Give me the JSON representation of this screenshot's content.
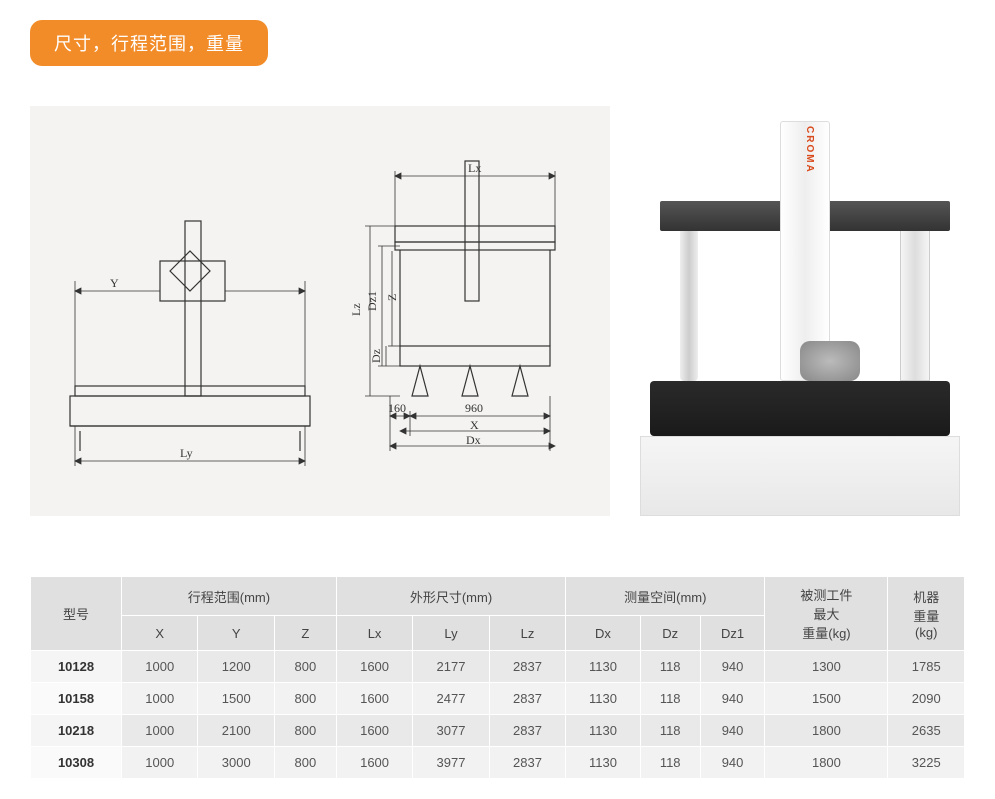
{
  "header": {
    "title": "尺寸，行程范围，重量"
  },
  "diagram": {
    "front_dim_y": "Y",
    "front_dim_ly": "Ly",
    "side_dim_lx": "Lx",
    "side_dim_lz": "Lz",
    "side_dim_z": "Z",
    "side_dim_dz": "Dz",
    "side_dim_dz1": "Dz1",
    "side_dim_x": "X",
    "side_dim_dx": "Dx",
    "side_num_left": "160",
    "side_num_right": "960",
    "background_color": "#f4f3f1",
    "line_color": "#333333"
  },
  "photo": {
    "brand": "CROMA"
  },
  "table": {
    "col_model": "型号",
    "group_travel": "行程范围(mm)",
    "group_outer": "外形尺寸(mm)",
    "group_space": "测量空间(mm)",
    "col_workload": "被测工件\n最大\n重量(kg)",
    "col_weight": "机器\n重量\n(kg)",
    "sub_X": "X",
    "sub_Y": "Y",
    "sub_Z": "Z",
    "sub_Lx": "Lx",
    "sub_Ly": "Ly",
    "sub_Lz": "Lz",
    "sub_Dx": "Dx",
    "sub_Dz": "Dz",
    "sub_Dz1": "Dz1",
    "rows": [
      {
        "model": "10128",
        "X": "1000",
        "Y": "1200",
        "Z": "800",
        "Lx": "1600",
        "Ly": "2177",
        "Lz": "2837",
        "Dx": "1130",
        "Dz": "118",
        "Dz1": "940",
        "load": "1300",
        "wt": "1785"
      },
      {
        "model": "10158",
        "X": "1000",
        "Y": "1500",
        "Z": "800",
        "Lx": "1600",
        "Ly": "2477",
        "Lz": "2837",
        "Dx": "1130",
        "Dz": "118",
        "Dz1": "940",
        "load": "1500",
        "wt": "2090"
      },
      {
        "model": "10218",
        "X": "1000",
        "Y": "2100",
        "Z": "800",
        "Lx": "1600",
        "Ly": "3077",
        "Lz": "2837",
        "Dx": "1130",
        "Dz": "118",
        "Dz1": "940",
        "load": "1800",
        "wt": "2635"
      },
      {
        "model": "10308",
        "X": "1000",
        "Y": "3000",
        "Z": "800",
        "Lx": "1600",
        "Ly": "3977",
        "Lz": "2837",
        "Dx": "1130",
        "Dz": "118",
        "Dz1": "940",
        "load": "1800",
        "wt": "3225"
      }
    ],
    "header_bg": "#e0e0e0",
    "row_bg": "#e9e9e9",
    "row_alt_bg": "#f2f2f2",
    "border_color": "#ffffff"
  }
}
